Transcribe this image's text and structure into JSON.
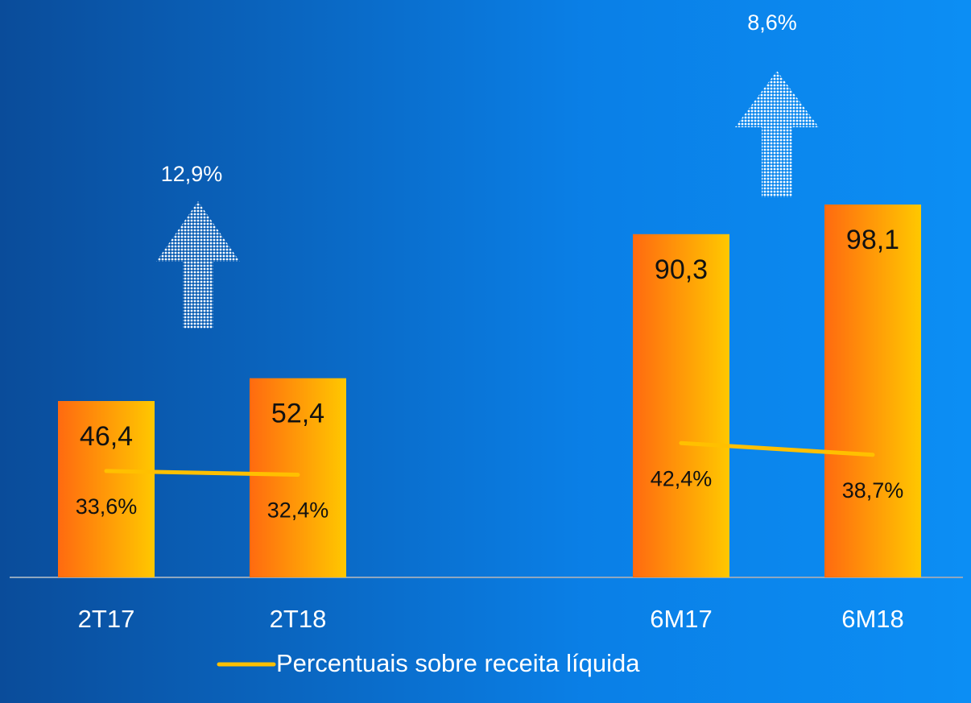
{
  "chart_data": {
    "type": "bar",
    "categories": [
      "2T17",
      "2T18",
      null,
      "6M17",
      "6M18"
    ],
    "ylim": [
      0,
      150
    ],
    "y2lim": [
      0,
      180
    ],
    "series": [
      {
        "type": "bar",
        "color": [
          "#ff6a10",
          "#ffc800"
        ],
        "values": [
          46.4,
          52.4,
          null,
          90.3,
          98.1
        ],
        "value_labels": [
          "46,4",
          "52,4",
          null,
          "90,3",
          "98,1"
        ]
      },
      {
        "type": "line",
        "name": "Percentuais sobre receita líquida",
        "color": "#ffc000",
        "axis": "y2",
        "values": [
          33.6,
          32.4,
          null,
          42.4,
          38.7
        ],
        "value_labels": [
          "33,6%",
          "32,4%",
          null,
          "42,4%",
          "38,7%"
        ]
      }
    ],
    "annotations": [
      {
        "text": "12,9%"
      },
      {
        "text": "8,6%"
      }
    ]
  }
}
